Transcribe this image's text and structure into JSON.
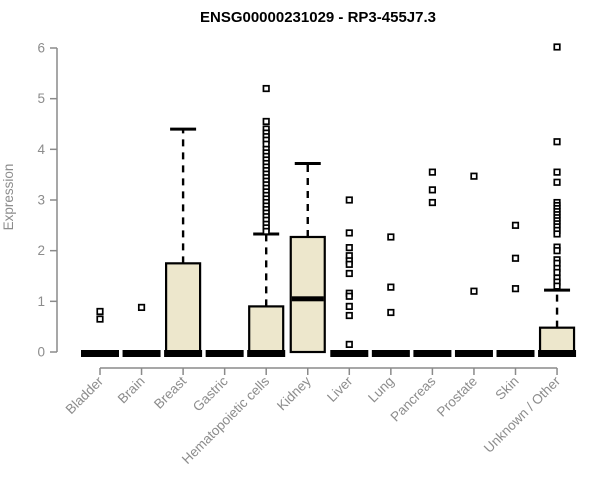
{
  "header": {
    "title": "ENSG00000231029 - RP3-455J7.3"
  },
  "colors": {
    "background": "#ffffff",
    "box_fill": "#ede7cc",
    "box_stroke": "#000000",
    "median_color": "#000000",
    "whisker_color": "#000000",
    "outlier_stroke": "#000000",
    "outlier_fill": "#ffffff",
    "axis_line": "#8a8a8a",
    "axis_text": "#8c8c8c",
    "title_text": "#000000"
  },
  "chart_data": {
    "type": "boxplot",
    "title": "ENSG00000231029 - RP3-455J7.3",
    "xlabel": "",
    "ylabel": "Expression",
    "ylim": [
      0,
      6
    ],
    "yticks": [
      0,
      1,
      2,
      3,
      4,
      5,
      6
    ],
    "grid": false,
    "legend": false,
    "categories": [
      "Bladder",
      "Brain",
      "Breast",
      "Gastric",
      "Hematopoietic cells",
      "Kidney",
      "Liver",
      "Lung",
      "Pancreas",
      "Prostate",
      "Skin",
      "Unknown / Other"
    ],
    "boxes": [
      {
        "category": "Bladder",
        "q1": 0,
        "median": 0,
        "q3": 0,
        "whisker_low": 0,
        "whisker_high": 0,
        "outliers": [
          0.8,
          0.65
        ]
      },
      {
        "category": "Brain",
        "q1": 0,
        "median": 0,
        "q3": 0,
        "whisker_low": 0,
        "whisker_high": 0,
        "outliers": [
          0.88
        ]
      },
      {
        "category": "Breast",
        "q1": 0,
        "median": 0,
        "q3": 1.75,
        "whisker_low": 0,
        "whisker_high": 4.4,
        "outliers": []
      },
      {
        "category": "Gastric",
        "q1": 0,
        "median": 0,
        "q3": 0,
        "whisker_low": 0,
        "whisker_high": 0,
        "outliers": []
      },
      {
        "category": "Hematopoietic cells",
        "q1": 0,
        "median": 0,
        "q3": 0.9,
        "whisker_low": 0,
        "whisker_high": 2.33,
        "outliers": [
          5.2,
          4.55,
          4.4,
          4.32,
          4.25,
          4.18,
          4.1,
          4.0,
          3.93,
          3.86,
          3.79,
          3.72,
          3.65,
          3.58,
          3.51,
          3.44,
          3.37,
          3.3,
          3.23,
          3.16,
          3.09,
          3.02,
          2.95,
          2.88,
          2.81,
          2.74,
          2.67,
          2.6,
          2.52,
          2.45,
          2.38
        ]
      },
      {
        "category": "Kidney",
        "q1": 0,
        "median": 1.05,
        "q3": 2.27,
        "whisker_low": 0,
        "whisker_high": 3.72,
        "outliers": []
      },
      {
        "category": "Liver",
        "q1": 0,
        "median": 0,
        "q3": 0,
        "whisker_low": 0,
        "whisker_high": 0,
        "outliers": [
          3.0,
          2.35,
          2.06,
          1.9,
          1.8,
          1.73,
          1.55,
          1.16,
          1.1,
          0.9,
          0.72,
          0.15
        ]
      },
      {
        "category": "Lung",
        "q1": 0,
        "median": 0,
        "q3": 0,
        "whisker_low": 0,
        "whisker_high": 0,
        "outliers": [
          2.27,
          1.28,
          0.78
        ]
      },
      {
        "category": "Pancreas",
        "q1": 0,
        "median": 0,
        "q3": 0,
        "whisker_low": 0,
        "whisker_high": 0,
        "outliers": [
          3.55,
          3.2,
          2.95
        ]
      },
      {
        "category": "Prostate",
        "q1": 0,
        "median": 0,
        "q3": 0,
        "whisker_low": 0,
        "whisker_high": 0,
        "outliers": [
          3.47,
          1.2
        ]
      },
      {
        "category": "Skin",
        "q1": 0,
        "median": 0,
        "q3": 0,
        "whisker_low": 0,
        "whisker_high": 0,
        "outliers": [
          2.5,
          1.85,
          1.25
        ]
      },
      {
        "category": "Unknown / Other",
        "q1": 0,
        "median": 0,
        "q3": 0.48,
        "whisker_low": 0,
        "whisker_high": 1.22,
        "outliers": [
          6.02,
          4.15,
          3.55,
          3.35,
          2.95,
          2.89,
          2.83,
          2.77,
          2.71,
          2.65,
          2.59,
          2.53,
          2.47,
          2.4,
          2.33,
          2.07,
          2.0,
          1.82,
          1.75,
          1.65,
          1.57,
          1.46,
          1.38,
          1.3
        ]
      }
    ]
  }
}
